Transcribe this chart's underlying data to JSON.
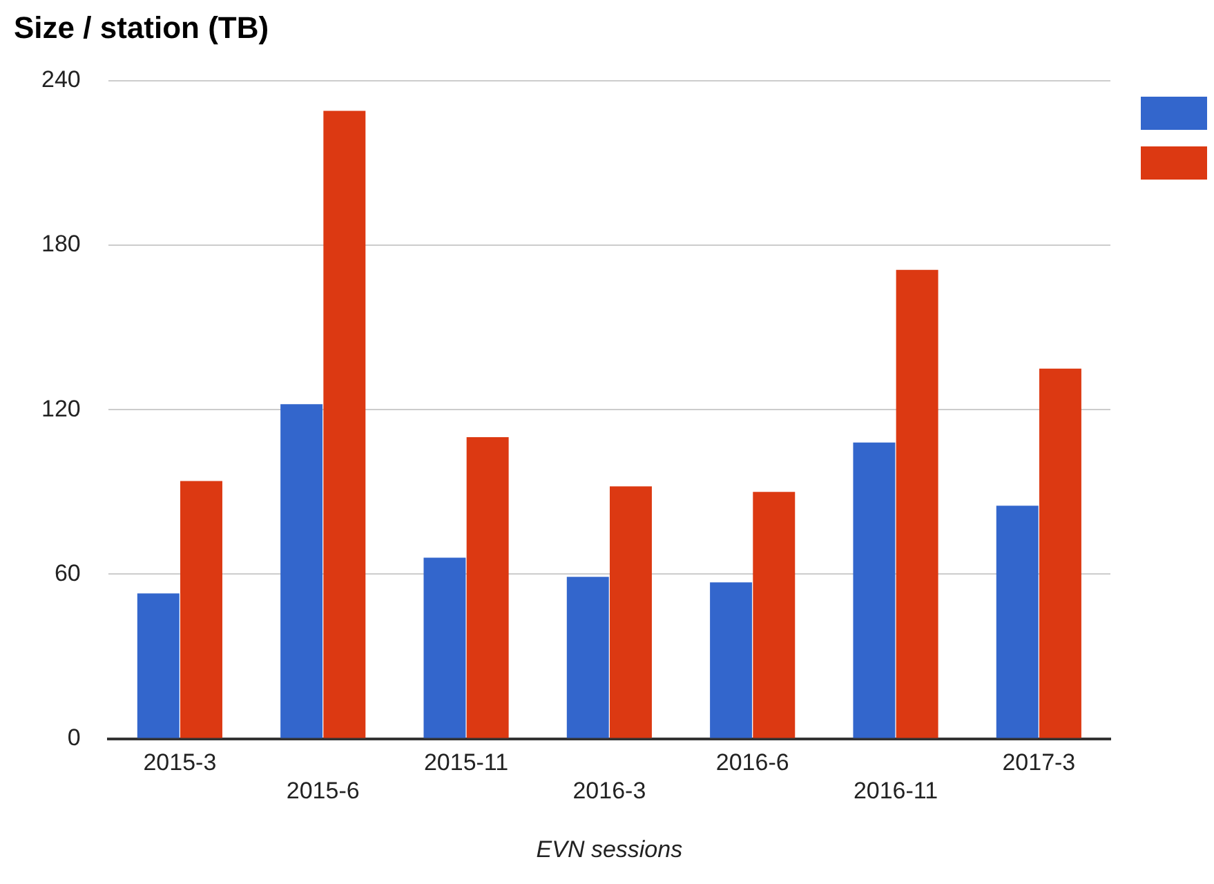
{
  "chart_data": {
    "type": "bar",
    "title": "Size / station (TB)",
    "xlabel": "EVN sessions",
    "categories": [
      "2015-3",
      "2015-6",
      "2015-11",
      "2016-3",
      "2016-6",
      "2016-11",
      "2017-3"
    ],
    "series": [
      {
        "color": "#3366cc",
        "values": [
          53,
          122,
          66,
          59,
          57,
          108,
          85
        ]
      },
      {
        "color": "#dc3912",
        "values": [
          94,
          229,
          110,
          92,
          90,
          171,
          135
        ]
      }
    ],
    "ylim": [
      0,
      240
    ],
    "yticks": [
      0,
      60,
      120,
      180,
      240
    ],
    "grid": "y"
  }
}
